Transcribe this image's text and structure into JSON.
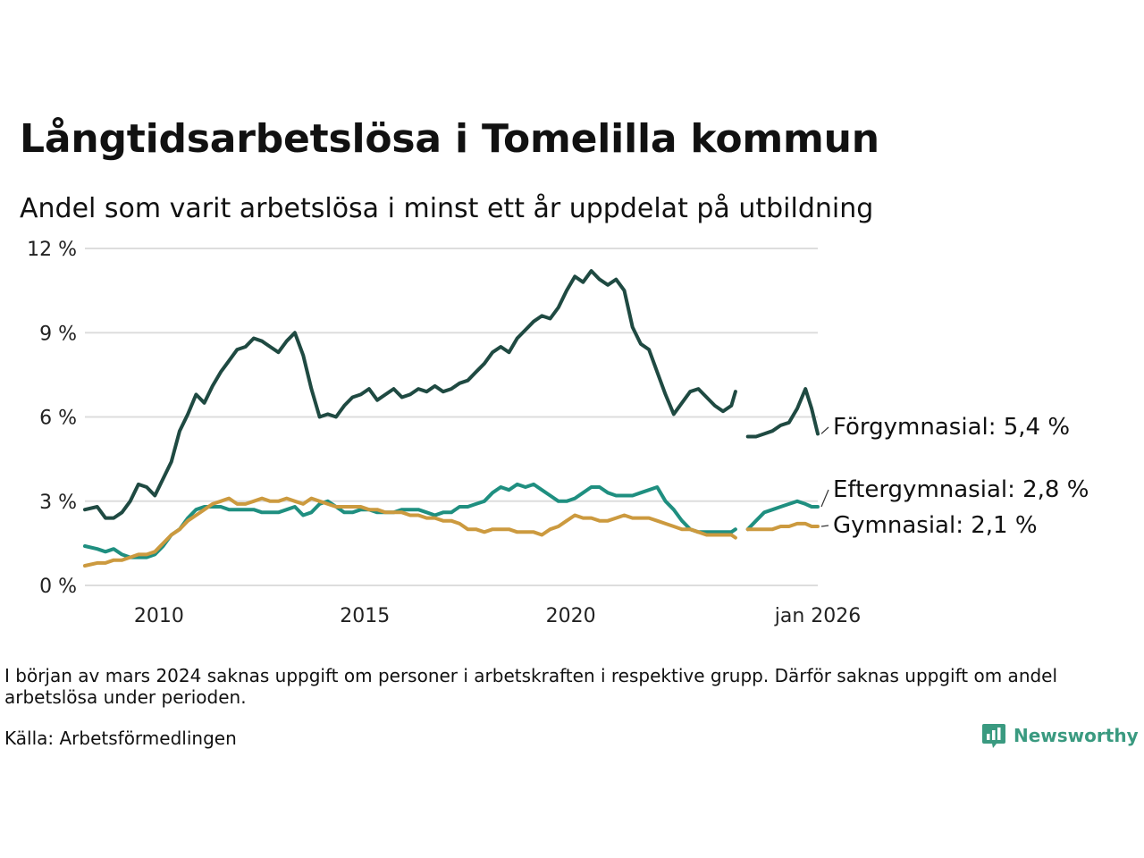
{
  "header": {
    "title": "Långtidsarbetslösa i Tomelilla kommun",
    "subtitle": "Andel som varit arbetslösa i minst ett år uppdelat på utbildning"
  },
  "footer": {
    "note": "I början av mars 2024 saknas uppgift om personer i arbetskraften i respektive grupp. Därför saknas uppgift om andel arbetslösa under perioden.",
    "source": "Källa: Arbetsförmedlingen",
    "brand": "Newsworthy"
  },
  "chart_data": {
    "type": "line",
    "title": "Långtidsarbetslösa i Tomelilla kommun",
    "subtitle": "Andel som varit arbetslösa i minst ett år uppdelat på utbildning",
    "xlabel": "",
    "ylabel": "",
    "ylim": [
      0,
      12
    ],
    "xlim": [
      2008.2,
      2026.0
    ],
    "yticks": [
      0,
      3,
      6,
      9,
      12
    ],
    "ytick_labels": [
      "0 %",
      "3 %",
      "6 %",
      "9 %",
      "12 %"
    ],
    "xticks": [
      2010,
      2015,
      2020,
      2026
    ],
    "xtick_labels": [
      "2010",
      "2015",
      "2020",
      "jan 2026"
    ],
    "grid": true,
    "legend": "direct-labels-right",
    "series": [
      {
        "name": "Förgymnasial",
        "end_label": "Förgymnasial: 5,4 %",
        "color": "#1f4a42",
        "points": [
          [
            2008.2,
            2.7
          ],
          [
            2008.5,
            2.8
          ],
          [
            2008.7,
            2.4
          ],
          [
            2008.9,
            2.4
          ],
          [
            2009.1,
            2.6
          ],
          [
            2009.3,
            3.0
          ],
          [
            2009.5,
            3.6
          ],
          [
            2009.7,
            3.5
          ],
          [
            2009.9,
            3.2
          ],
          [
            2010.1,
            3.8
          ],
          [
            2010.3,
            4.4
          ],
          [
            2010.5,
            5.5
          ],
          [
            2010.7,
            6.1
          ],
          [
            2010.9,
            6.8
          ],
          [
            2011.1,
            6.5
          ],
          [
            2011.3,
            7.1
          ],
          [
            2011.5,
            7.6
          ],
          [
            2011.7,
            8.0
          ],
          [
            2011.9,
            8.4
          ],
          [
            2012.1,
            8.5
          ],
          [
            2012.3,
            8.8
          ],
          [
            2012.5,
            8.7
          ],
          [
            2012.7,
            8.5
          ],
          [
            2012.9,
            8.3
          ],
          [
            2013.1,
            8.7
          ],
          [
            2013.3,
            9.0
          ],
          [
            2013.5,
            8.2
          ],
          [
            2013.7,
            7.0
          ],
          [
            2013.9,
            6.0
          ],
          [
            2014.1,
            6.1
          ],
          [
            2014.3,
            6.0
          ],
          [
            2014.5,
            6.4
          ],
          [
            2014.7,
            6.7
          ],
          [
            2014.9,
            6.8
          ],
          [
            2015.1,
            7.0
          ],
          [
            2015.3,
            6.6
          ],
          [
            2015.5,
            6.8
          ],
          [
            2015.7,
            7.0
          ],
          [
            2015.9,
            6.7
          ],
          [
            2016.1,
            6.8
          ],
          [
            2016.3,
            7.0
          ],
          [
            2016.5,
            6.9
          ],
          [
            2016.7,
            7.1
          ],
          [
            2016.9,
            6.9
          ],
          [
            2017.1,
            7.0
          ],
          [
            2017.3,
            7.2
          ],
          [
            2017.5,
            7.3
          ],
          [
            2017.7,
            7.6
          ],
          [
            2017.9,
            7.9
          ],
          [
            2018.1,
            8.3
          ],
          [
            2018.3,
            8.5
          ],
          [
            2018.5,
            8.3
          ],
          [
            2018.7,
            8.8
          ],
          [
            2018.9,
            9.1
          ],
          [
            2019.1,
            9.4
          ],
          [
            2019.3,
            9.6
          ],
          [
            2019.5,
            9.5
          ],
          [
            2019.7,
            9.9
          ],
          [
            2019.9,
            10.5
          ],
          [
            2020.1,
            11.0
          ],
          [
            2020.3,
            10.8
          ],
          [
            2020.5,
            11.2
          ],
          [
            2020.7,
            10.9
          ],
          [
            2020.9,
            10.7
          ],
          [
            2021.1,
            10.9
          ],
          [
            2021.3,
            10.5
          ],
          [
            2021.5,
            9.2
          ],
          [
            2021.7,
            8.6
          ],
          [
            2021.9,
            8.4
          ],
          [
            2022.1,
            7.6
          ],
          [
            2022.3,
            6.8
          ],
          [
            2022.5,
            6.1
          ],
          [
            2022.7,
            6.5
          ],
          [
            2022.9,
            6.9
          ],
          [
            2023.1,
            7.0
          ],
          [
            2023.3,
            6.7
          ],
          [
            2023.5,
            6.4
          ],
          [
            2023.7,
            6.2
          ],
          [
            2023.9,
            6.4
          ],
          [
            2024.0,
            6.9
          ],
          null,
          [
            2024.3,
            5.3
          ],
          [
            2024.5,
            5.3
          ],
          [
            2024.7,
            5.4
          ],
          [
            2024.9,
            5.5
          ],
          [
            2025.1,
            5.7
          ],
          [
            2025.3,
            5.8
          ],
          [
            2025.5,
            6.3
          ],
          [
            2025.7,
            7.0
          ],
          [
            2025.85,
            6.3
          ],
          [
            2026.0,
            5.4
          ]
        ]
      },
      {
        "name": "Eftergymnasial",
        "end_label": "Eftergymnasial: 2,8 %",
        "color": "#1f8f80",
        "points": [
          [
            2008.2,
            1.4
          ],
          [
            2008.5,
            1.3
          ],
          [
            2008.7,
            1.2
          ],
          [
            2008.9,
            1.3
          ],
          [
            2009.1,
            1.1
          ],
          [
            2009.3,
            1.0
          ],
          [
            2009.5,
            1.0
          ],
          [
            2009.7,
            1.0
          ],
          [
            2009.9,
            1.1
          ],
          [
            2010.1,
            1.4
          ],
          [
            2010.3,
            1.8
          ],
          [
            2010.5,
            2.0
          ],
          [
            2010.7,
            2.4
          ],
          [
            2010.9,
            2.7
          ],
          [
            2011.1,
            2.8
          ],
          [
            2011.3,
            2.8
          ],
          [
            2011.5,
            2.8
          ],
          [
            2011.7,
            2.7
          ],
          [
            2011.9,
            2.7
          ],
          [
            2012.1,
            2.7
          ],
          [
            2012.3,
            2.7
          ],
          [
            2012.5,
            2.6
          ],
          [
            2012.7,
            2.6
          ],
          [
            2012.9,
            2.6
          ],
          [
            2013.1,
            2.7
          ],
          [
            2013.3,
            2.8
          ],
          [
            2013.5,
            2.5
          ],
          [
            2013.7,
            2.6
          ],
          [
            2013.9,
            2.9
          ],
          [
            2014.1,
            3.0
          ],
          [
            2014.3,
            2.8
          ],
          [
            2014.5,
            2.6
          ],
          [
            2014.7,
            2.6
          ],
          [
            2014.9,
            2.7
          ],
          [
            2015.1,
            2.7
          ],
          [
            2015.3,
            2.6
          ],
          [
            2015.5,
            2.6
          ],
          [
            2015.7,
            2.6
          ],
          [
            2015.9,
            2.7
          ],
          [
            2016.1,
            2.7
          ],
          [
            2016.3,
            2.7
          ],
          [
            2016.5,
            2.6
          ],
          [
            2016.7,
            2.5
          ],
          [
            2016.9,
            2.6
          ],
          [
            2017.1,
            2.6
          ],
          [
            2017.3,
            2.8
          ],
          [
            2017.5,
            2.8
          ],
          [
            2017.7,
            2.9
          ],
          [
            2017.9,
            3.0
          ],
          [
            2018.1,
            3.3
          ],
          [
            2018.3,
            3.5
          ],
          [
            2018.5,
            3.4
          ],
          [
            2018.7,
            3.6
          ],
          [
            2018.9,
            3.5
          ],
          [
            2019.1,
            3.6
          ],
          [
            2019.3,
            3.4
          ],
          [
            2019.5,
            3.2
          ],
          [
            2019.7,
            3.0
          ],
          [
            2019.9,
            3.0
          ],
          [
            2020.1,
            3.1
          ],
          [
            2020.3,
            3.3
          ],
          [
            2020.5,
            3.5
          ],
          [
            2020.7,
            3.5
          ],
          [
            2020.9,
            3.3
          ],
          [
            2021.1,
            3.2
          ],
          [
            2021.3,
            3.2
          ],
          [
            2021.5,
            3.2
          ],
          [
            2021.7,
            3.3
          ],
          [
            2021.9,
            3.4
          ],
          [
            2022.1,
            3.5
          ],
          [
            2022.3,
            3.0
          ],
          [
            2022.5,
            2.7
          ],
          [
            2022.7,
            2.3
          ],
          [
            2022.9,
            2.0
          ],
          [
            2023.1,
            1.9
          ],
          [
            2023.3,
            1.9
          ],
          [
            2023.5,
            1.9
          ],
          [
            2023.7,
            1.9
          ],
          [
            2023.9,
            1.9
          ],
          [
            2024.0,
            2.0
          ],
          null,
          [
            2024.3,
            2.0
          ],
          [
            2024.5,
            2.3
          ],
          [
            2024.7,
            2.6
          ],
          [
            2024.9,
            2.7
          ],
          [
            2025.1,
            2.8
          ],
          [
            2025.3,
            2.9
          ],
          [
            2025.5,
            3.0
          ],
          [
            2025.7,
            2.9
          ],
          [
            2025.85,
            2.8
          ],
          [
            2026.0,
            2.8
          ]
        ]
      },
      {
        "name": "Gymnasial",
        "end_label": "Gymnasial: 2,1 %",
        "color": "#cc9a3f",
        "points": [
          [
            2008.2,
            0.7
          ],
          [
            2008.5,
            0.8
          ],
          [
            2008.7,
            0.8
          ],
          [
            2008.9,
            0.9
          ],
          [
            2009.1,
            0.9
          ],
          [
            2009.3,
            1.0
          ],
          [
            2009.5,
            1.1
          ],
          [
            2009.7,
            1.1
          ],
          [
            2009.9,
            1.2
          ],
          [
            2010.1,
            1.5
          ],
          [
            2010.3,
            1.8
          ],
          [
            2010.5,
            2.0
          ],
          [
            2010.7,
            2.3
          ],
          [
            2010.9,
            2.5
          ],
          [
            2011.1,
            2.7
          ],
          [
            2011.3,
            2.9
          ],
          [
            2011.5,
            3.0
          ],
          [
            2011.7,
            3.1
          ],
          [
            2011.9,
            2.9
          ],
          [
            2012.1,
            2.9
          ],
          [
            2012.3,
            3.0
          ],
          [
            2012.5,
            3.1
          ],
          [
            2012.7,
            3.0
          ],
          [
            2012.9,
            3.0
          ],
          [
            2013.1,
            3.1
          ],
          [
            2013.3,
            3.0
          ],
          [
            2013.5,
            2.9
          ],
          [
            2013.7,
            3.1
          ],
          [
            2013.9,
            3.0
          ],
          [
            2014.1,
            2.9
          ],
          [
            2014.3,
            2.8
          ],
          [
            2014.5,
            2.8
          ],
          [
            2014.7,
            2.8
          ],
          [
            2014.9,
            2.8
          ],
          [
            2015.1,
            2.7
          ],
          [
            2015.3,
            2.7
          ],
          [
            2015.5,
            2.6
          ],
          [
            2015.7,
            2.6
          ],
          [
            2015.9,
            2.6
          ],
          [
            2016.1,
            2.5
          ],
          [
            2016.3,
            2.5
          ],
          [
            2016.5,
            2.4
          ],
          [
            2016.7,
            2.4
          ],
          [
            2016.9,
            2.3
          ],
          [
            2017.1,
            2.3
          ],
          [
            2017.3,
            2.2
          ],
          [
            2017.5,
            2.0
          ],
          [
            2017.7,
            2.0
          ],
          [
            2017.9,
            1.9
          ],
          [
            2018.1,
            2.0
          ],
          [
            2018.3,
            2.0
          ],
          [
            2018.5,
            2.0
          ],
          [
            2018.7,
            1.9
          ],
          [
            2018.9,
            1.9
          ],
          [
            2019.1,
            1.9
          ],
          [
            2019.3,
            1.8
          ],
          [
            2019.5,
            2.0
          ],
          [
            2019.7,
            2.1
          ],
          [
            2019.9,
            2.3
          ],
          [
            2020.1,
            2.5
          ],
          [
            2020.3,
            2.4
          ],
          [
            2020.5,
            2.4
          ],
          [
            2020.7,
            2.3
          ],
          [
            2020.9,
            2.3
          ],
          [
            2021.1,
            2.4
          ],
          [
            2021.3,
            2.5
          ],
          [
            2021.5,
            2.4
          ],
          [
            2021.7,
            2.4
          ],
          [
            2021.9,
            2.4
          ],
          [
            2022.1,
            2.3
          ],
          [
            2022.3,
            2.2
          ],
          [
            2022.5,
            2.1
          ],
          [
            2022.7,
            2.0
          ],
          [
            2022.9,
            2.0
          ],
          [
            2023.1,
            1.9
          ],
          [
            2023.3,
            1.8
          ],
          [
            2023.5,
            1.8
          ],
          [
            2023.7,
            1.8
          ],
          [
            2023.9,
            1.8
          ],
          [
            2024.0,
            1.7
          ],
          null,
          [
            2024.3,
            2.0
          ],
          [
            2024.5,
            2.0
          ],
          [
            2024.7,
            2.0
          ],
          [
            2024.9,
            2.0
          ],
          [
            2025.1,
            2.1
          ],
          [
            2025.3,
            2.1
          ],
          [
            2025.5,
            2.2
          ],
          [
            2025.7,
            2.2
          ],
          [
            2025.85,
            2.1
          ],
          [
            2026.0,
            2.1
          ]
        ]
      }
    ]
  }
}
